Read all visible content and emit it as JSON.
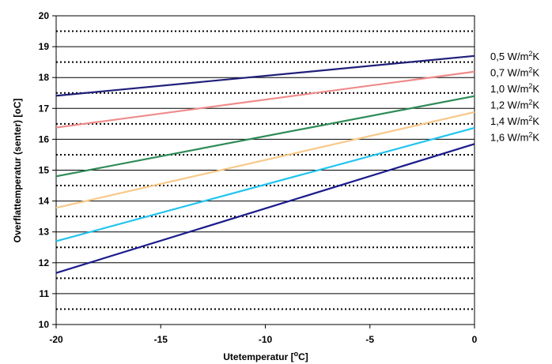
{
  "chart_data": {
    "type": "line",
    "xlabel": "Utetemperatur [°C]",
    "xlabel_parts": {
      "pre": "Utetemperatur [",
      "sup": "o",
      "post": "C]"
    },
    "ylabel": "Overflattemperatur (senter) [oC]",
    "xlim": [
      -20,
      0
    ],
    "ylim": [
      10,
      20
    ],
    "x_ticks": [
      -20,
      -15,
      -10,
      -5,
      0
    ],
    "y_ticks": [
      10,
      11,
      12,
      13,
      14,
      15,
      16,
      17,
      18,
      19,
      20
    ],
    "grid": "horizontal: solid lines at integers, dotted lines at half-integers",
    "legend_position": "right",
    "series": [
      {
        "name": "0,5 W/m2K",
        "label_pre": "0,5 W/m",
        "label_sup": "2",
        "label_post": "K",
        "color": "#1f1f7a",
        "x": [
          -20,
          0
        ],
        "y": [
          17.41,
          18.7
        ]
      },
      {
        "name": "0,7 W/m2K",
        "label_pre": "0,7 W/m",
        "label_sup": "2",
        "label_post": "K",
        "color": "#ef8a8a",
        "x": [
          -20,
          0
        ],
        "y": [
          16.38,
          18.19
        ]
      },
      {
        "name": "1,0 W/m2K",
        "label_pre": "1,0 W/m",
        "label_sup": "2",
        "label_post": "K",
        "color": "#2e8b57",
        "x": [
          -20,
          0
        ],
        "y": [
          14.8,
          17.4
        ]
      },
      {
        "name": "1,2 W/m2K",
        "label_pre": "1,2 W/m",
        "label_sup": "2",
        "label_post": "K",
        "color": "#f8c98a",
        "x": [
          -20,
          0
        ],
        "y": [
          13.78,
          16.88
        ]
      },
      {
        "name": "1,4 W/m2K",
        "label_pre": "1,4 W/m",
        "label_sup": "2",
        "label_post": "K",
        "color": "#22c4ee",
        "x": [
          -20,
          0
        ],
        "y": [
          12.7,
          16.37
        ]
      },
      {
        "name": "1,6 W/m2K",
        "label_pre": "1,6 W/m",
        "label_sup": "2",
        "label_post": "K",
        "color": "#1a1a8c",
        "x": [
          -20,
          0
        ],
        "y": [
          11.67,
          15.85
        ]
      }
    ]
  }
}
